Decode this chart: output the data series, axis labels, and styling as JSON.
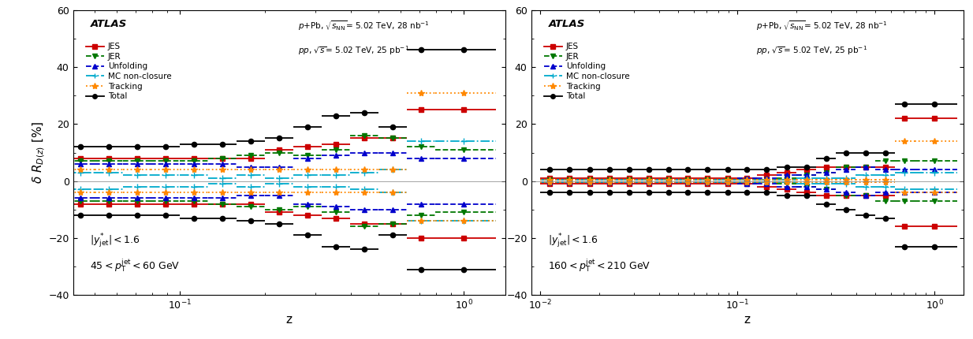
{
  "panel1": {
    "xmin": 0.042,
    "xmax": 1.4,
    "ymin": -40,
    "ymax": 60,
    "xlabel": "z",
    "bin_edges": [
      0.04,
      0.05,
      0.063,
      0.079,
      0.1,
      0.126,
      0.158,
      0.2,
      0.251,
      0.316,
      0.398,
      0.501,
      0.631,
      0.794,
      1.3
    ],
    "bin_centers": [
      0.0447,
      0.0562,
      0.0707,
      0.0891,
      0.112,
      0.141,
      0.178,
      0.224,
      0.282,
      0.355,
      0.447,
      0.562,
      0.707,
      1.0
    ],
    "series": {
      "JES_pos": [
        8,
        8,
        8,
        8,
        8,
        8,
        8,
        11,
        12,
        13,
        15,
        15,
        25,
        25
      ],
      "JES_neg": [
        -8,
        -8,
        -8,
        -8,
        -8,
        -8,
        -8,
        -11,
        -12,
        -13,
        -15,
        -15,
        -20,
        -20
      ],
      "JER_pos": [
        7,
        7,
        7,
        7,
        7,
        8,
        9,
        10,
        9,
        11,
        16,
        15,
        12,
        11
      ],
      "JER_neg": [
        -7,
        -7,
        -7,
        -7,
        -7,
        -8,
        -9,
        -10,
        -9,
        -11,
        -16,
        -15,
        -12,
        -11
      ],
      "Unf_pos": [
        6,
        6,
        6,
        6,
        6,
        6,
        5,
        5,
        8,
        9,
        10,
        10,
        8,
        8
      ],
      "Unf_neg": [
        -6,
        -6,
        -6,
        -6,
        -6,
        -6,
        -5,
        -5,
        -8,
        -9,
        -10,
        -10,
        -8,
        -8
      ],
      "MC_pos": [
        3,
        3,
        2,
        2,
        2,
        1,
        2,
        1,
        2,
        2,
        3,
        4,
        14,
        14
      ],
      "MC_neg": [
        -3,
        -3,
        -2,
        -2,
        -2,
        -1,
        -2,
        -1,
        -2,
        -2,
        -3,
        -4,
        -14,
        -14
      ],
      "Track_pos": [
        4,
        4,
        4,
        4,
        4,
        4,
        4,
        4,
        4,
        4,
        4,
        4,
        31,
        31
      ],
      "Track_neg": [
        -4,
        -4,
        -4,
        -4,
        -4,
        -4,
        -4,
        -4,
        -4,
        -4,
        -4,
        -4,
        -14,
        -14
      ],
      "Total_pos": [
        12,
        12,
        12,
        12,
        13,
        13,
        14,
        15,
        19,
        23,
        24,
        19,
        46,
        46
      ],
      "Total_neg": [
        -12,
        -12,
        -12,
        -12,
        -13,
        -13,
        -14,
        -15,
        -19,
        -23,
        -24,
        -19,
        -31,
        -31
      ]
    }
  },
  "panel2": {
    "xmin": 0.009,
    "xmax": 1.4,
    "ymin": -40,
    "ymax": 60,
    "xlabel": "z",
    "bin_edges": [
      0.01,
      0.0126,
      0.0158,
      0.02,
      0.025,
      0.032,
      0.04,
      0.05,
      0.063,
      0.079,
      0.1,
      0.126,
      0.158,
      0.2,
      0.251,
      0.316,
      0.398,
      0.501,
      0.631,
      0.794,
      1.3
    ],
    "bin_centers": [
      0.0112,
      0.0141,
      0.0178,
      0.0224,
      0.0282,
      0.0357,
      0.0447,
      0.0562,
      0.0707,
      0.0891,
      0.112,
      0.141,
      0.178,
      0.224,
      0.282,
      0.355,
      0.447,
      0.562,
      0.707,
      1.0
    ],
    "series": {
      "JES_pos": [
        1,
        1,
        1,
        1,
        1,
        1,
        1,
        1,
        1,
        1,
        1,
        2,
        3,
        4,
        5,
        5,
        5,
        5,
        22,
        22
      ],
      "JES_neg": [
        -1,
        -1,
        -1,
        -1,
        -1,
        -1,
        -1,
        -1,
        -1,
        -1,
        -1,
        -2,
        -3,
        -4,
        -5,
        -5,
        -5,
        -5,
        -16,
        -16
      ],
      "JER_pos": [
        0.5,
        0.5,
        0.5,
        0.5,
        0.5,
        0.5,
        0.5,
        0.5,
        0.5,
        0.5,
        0.5,
        0.5,
        1,
        2,
        3,
        5,
        5,
        7,
        7,
        7
      ],
      "JER_neg": [
        -0.5,
        -0.5,
        -0.5,
        -0.5,
        -0.5,
        -0.5,
        -0.5,
        -0.5,
        -0.5,
        -0.5,
        -0.5,
        -0.5,
        -1,
        -2,
        -3,
        -5,
        -5,
        -7,
        -7,
        -7
      ],
      "Unf_pos": [
        0.5,
        0.5,
        0.5,
        0.5,
        0.5,
        0.5,
        0.5,
        0.5,
        0.5,
        0.5,
        1,
        1,
        2,
        2,
        3,
        4,
        5,
        4,
        4,
        4
      ],
      "Unf_neg": [
        -0.5,
        -0.5,
        -0.5,
        -0.5,
        -0.5,
        -0.5,
        -0.5,
        -0.5,
        -0.5,
        -0.5,
        -1,
        -1,
        -2,
        -2,
        -3,
        -4,
        -5,
        -4,
        -4,
        -4
      ],
      "MC_pos": [
        0.5,
        0.5,
        0.5,
        0.5,
        0.5,
        0.5,
        0.5,
        0.5,
        0.5,
        0.5,
        0.5,
        0.5,
        0.5,
        1,
        1,
        1,
        2,
        2,
        3,
        3
      ],
      "MC_neg": [
        -0.5,
        -0.5,
        -0.5,
        -0.5,
        -0.5,
        -0.5,
        -0.5,
        -0.5,
        -0.5,
        -0.5,
        -0.5,
        -0.5,
        -0.5,
        -1,
        -1,
        -1,
        -2,
        -2,
        -3,
        -3
      ],
      "Track_pos": [
        0.5,
        0.5,
        0.5,
        0.5,
        0.5,
        0.5,
        0.5,
        0.5,
        0.5,
        0.5,
        0.5,
        0.5,
        0.5,
        0.5,
        0.5,
        0.5,
        0.5,
        0.5,
        14,
        14
      ],
      "Track_neg": [
        -0.5,
        -0.5,
        -0.5,
        -0.5,
        -0.5,
        -0.5,
        -0.5,
        -0.5,
        -0.5,
        -0.5,
        -0.5,
        -0.5,
        -0.5,
        -0.5,
        -0.5,
        -0.5,
        -0.5,
        -0.5,
        -4,
        -4
      ],
      "Total_pos": [
        4,
        4,
        4,
        4,
        4,
        4,
        4,
        4,
        4,
        4,
        4,
        4,
        5,
        5,
        8,
        10,
        10,
        10,
        27,
        27
      ],
      "Total_neg": [
        -4,
        -4,
        -4,
        -4,
        -4,
        -4,
        -4,
        -4,
        -4,
        -4,
        -4,
        -4,
        -5,
        -5,
        -8,
        -10,
        -12,
        -13,
        -23,
        -23
      ]
    }
  }
}
